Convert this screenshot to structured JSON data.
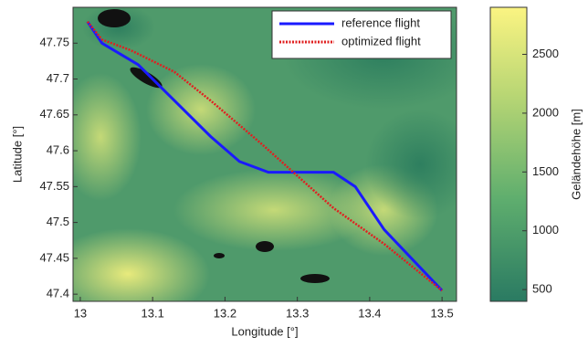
{
  "chart_data": {
    "type": "line",
    "xlabel": "Longitude [°]",
    "ylabel": "Latitude [°]",
    "xlim": [
      12.99,
      13.52
    ],
    "ylim": [
      47.39,
      47.8
    ],
    "xticks": [
      13,
      13.1,
      13.2,
      13.3,
      13.4,
      13.5
    ],
    "yticks": [
      47.4,
      47.45,
      47.5,
      47.55,
      47.6,
      47.65,
      47.7,
      47.75
    ],
    "legend": "upper right",
    "series": [
      {
        "name": "reference flight",
        "color": "#1a1aff",
        "style": "solid",
        "x": [
          13.01,
          13.03,
          13.08,
          13.13,
          13.18,
          13.22,
          13.26,
          13.35,
          13.38,
          13.42,
          13.5
        ],
        "values": [
          47.78,
          47.75,
          47.72,
          47.67,
          47.62,
          47.585,
          47.57,
          47.57,
          47.55,
          47.49,
          47.405
        ]
      },
      {
        "name": "optimized flight",
        "color": "#e02020",
        "style": "dotted",
        "x": [
          13.01,
          13.03,
          13.07,
          13.13,
          13.18,
          13.25,
          13.35,
          13.42,
          13.5
        ],
        "values": [
          47.78,
          47.755,
          47.74,
          47.71,
          47.67,
          47.61,
          47.52,
          47.47,
          47.405
        ]
      }
    ],
    "colorbar": {
      "label": "Geländehöhe [m]",
      "lim": [
        400,
        2900
      ],
      "ticks": [
        500,
        1000,
        1500,
        2000,
        2500
      ]
    }
  }
}
